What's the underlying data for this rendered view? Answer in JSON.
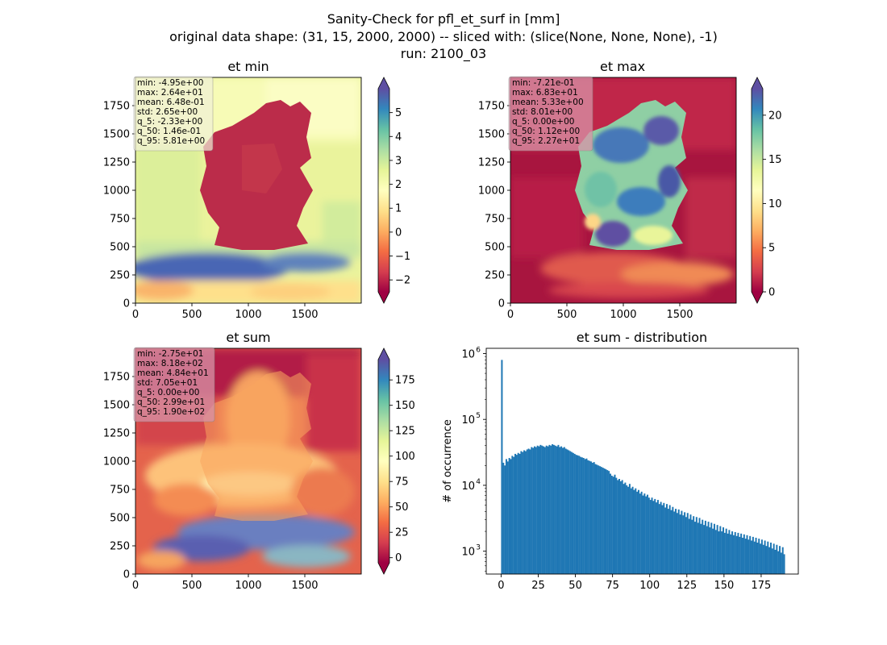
{
  "figure": {
    "suptitle": [
      "Sanity-Check for pfl_et_surf in [mm]",
      "original data shape: (31, 15, 2000, 2000) -- sliced with: (slice(None, None, None), -1)",
      "run: 2100_03"
    ]
  },
  "colormap": {
    "name": "Spectral",
    "stops": [
      "#9e0142",
      "#d53e4f",
      "#f46d43",
      "#fdae61",
      "#fee08b",
      "#ffffbf",
      "#e6f598",
      "#abdda4",
      "#66c2a5",
      "#3288bd",
      "#5e4fa2"
    ]
  },
  "chart_data": [
    {
      "type": "heatmap",
      "title": "et min",
      "xlim": [
        0,
        2000
      ],
      "ylim": [
        0,
        2000
      ],
      "x_ticks": [
        "0",
        "500",
        "1000",
        "1500"
      ],
      "y_ticks": [
        "0",
        "250",
        "500",
        "750",
        "1000",
        "1250",
        "1500",
        "1750"
      ],
      "colorbar_range": [
        -2.5,
        6
      ],
      "colorbar_ticks": [
        "−2",
        "−1",
        "0",
        "1",
        "2",
        "3",
        "4",
        "5"
      ],
      "stats_box_color": "#f0f0d8",
      "stats": [
        "min: -4.95e+00",
        "max: 2.64e+01",
        "mean: 6.48e-01",
        "std: 2.65e+00",
        "q_5: -2.33e+00",
        "q_50: 1.46e-01",
        "q_95: 5.81e+00"
      ]
    },
    {
      "type": "heatmap",
      "title": "et max",
      "xlim": [
        0,
        2000
      ],
      "ylim": [
        0,
        2000
      ],
      "x_ticks": [
        "0",
        "500",
        "1000",
        "1500"
      ],
      "y_ticks": [
        "0",
        "250",
        "500",
        "750",
        "1000",
        "1250",
        "1500",
        "1750"
      ],
      "colorbar_range": [
        0,
        23
      ],
      "colorbar_ticks": [
        "0",
        "5",
        "10",
        "15",
        "20"
      ],
      "stats_box_color": "#d894a8",
      "stats": [
        "min: -7.21e-01",
        "max: 6.83e+01",
        "mean: 5.33e+00",
        "std: 8.01e+00",
        "q_5: 0.00e+00",
        "q_50: 1.12e+00",
        "q_95: 2.27e+01"
      ]
    },
    {
      "type": "heatmap",
      "title": "et sum",
      "xlim": [
        0,
        2000
      ],
      "ylim": [
        0,
        2000
      ],
      "x_ticks": [
        "0",
        "500",
        "1000",
        "1500"
      ],
      "y_ticks": [
        "0",
        "250",
        "500",
        "750",
        "1000",
        "1250",
        "1500",
        "1750"
      ],
      "colorbar_range": [
        -5,
        195
      ],
      "colorbar_ticks": [
        "0",
        "25",
        "50",
        "75",
        "100",
        "125",
        "150",
        "175"
      ],
      "stats_box_color": "#d894a8",
      "stats": [
        "min: -2.75e+01",
        "max: 8.18e+02",
        "mean: 4.84e+01",
        "std: 7.05e+01",
        "q_5: 0.00e+00",
        "q_50: 2.99e+01",
        "q_95: 1.90e+02"
      ]
    },
    {
      "type": "bar",
      "title": "et sum - distribution",
      "ylabel": "# of occurrence",
      "xlabel": "",
      "yscale": "log",
      "xlim": [
        -10,
        200
      ],
      "ylim": [
        450,
        1200000
      ],
      "x_ticks": [
        "0",
        "25",
        "50",
        "75",
        "100",
        "125",
        "150",
        "175"
      ],
      "y_ticks": [
        {
          "base": "10",
          "exp": "3"
        },
        {
          "base": "10",
          "exp": "4"
        },
        {
          "base": "10",
          "exp": "5"
        },
        {
          "base": "10",
          "exp": "6"
        }
      ],
      "bar_color": "#1f77b4",
      "bin_width": 1.0,
      "bins_start": 0,
      "values": [
        800000,
        22000,
        20000,
        25000,
        23000,
        26000,
        25000,
        28000,
        27000,
        30000,
        29000,
        31000,
        30000,
        33000,
        32000,
        34000,
        33000,
        35000,
        36000,
        35000,
        38000,
        37000,
        39000,
        38000,
        40000,
        39000,
        41000,
        40000,
        39000,
        38000,
        40000,
        39000,
        41000,
        40000,
        42000,
        41000,
        40000,
        39000,
        41000,
        38000,
        39000,
        37000,
        38000,
        36000,
        35000,
        34000,
        33000,
        32000,
        31000,
        30000,
        29000,
        28500,
        28000,
        27000,
        26500,
        26000,
        25000,
        25500,
        24000,
        23500,
        23000,
        22000,
        22500,
        21000,
        20500,
        20000,
        19500,
        19000,
        18500,
        18000,
        17500,
        17000,
        16500,
        15000,
        14000,
        13500,
        14500,
        13000,
        12000,
        12500,
        11500,
        12000,
        10500,
        11000,
        10000,
        9500,
        10500,
        9000,
        9500,
        8500,
        9000,
        8000,
        8500,
        7500,
        8000,
        7000,
        7500,
        6800,
        7200,
        6500,
        6000,
        6500,
        5800,
        6200,
        5500,
        6000,
        5200,
        5600,
        5000,
        5400,
        4600,
        5200,
        4400,
        5000,
        4200,
        4700,
        4000,
        4400,
        3800,
        4300,
        3600,
        4100,
        3500,
        3900,
        3300,
        3800,
        3100,
        3600,
        3000,
        3400,
        2800,
        3300,
        2700,
        3200,
        2600,
        3000,
        2500,
        2900,
        2400,
        2800,
        2300,
        2700,
        2200,
        2600,
        2100,
        2500,
        2000,
        2400,
        2000,
        2300,
        1900,
        2200,
        1850,
        2100,
        1800,
        2000,
        1750,
        1950,
        1700,
        1900,
        1650,
        1850,
        1600,
        1800,
        1550,
        1750,
        1500,
        1700,
        1450,
        1650,
        1400,
        1600,
        1350,
        1550,
        1300,
        1500,
        1250,
        1450,
        1200,
        1400,
        1150,
        1350,
        1100,
        1300,
        1050,
        1250,
        1000,
        1200,
        950,
        1150,
        900
      ]
    }
  ]
}
